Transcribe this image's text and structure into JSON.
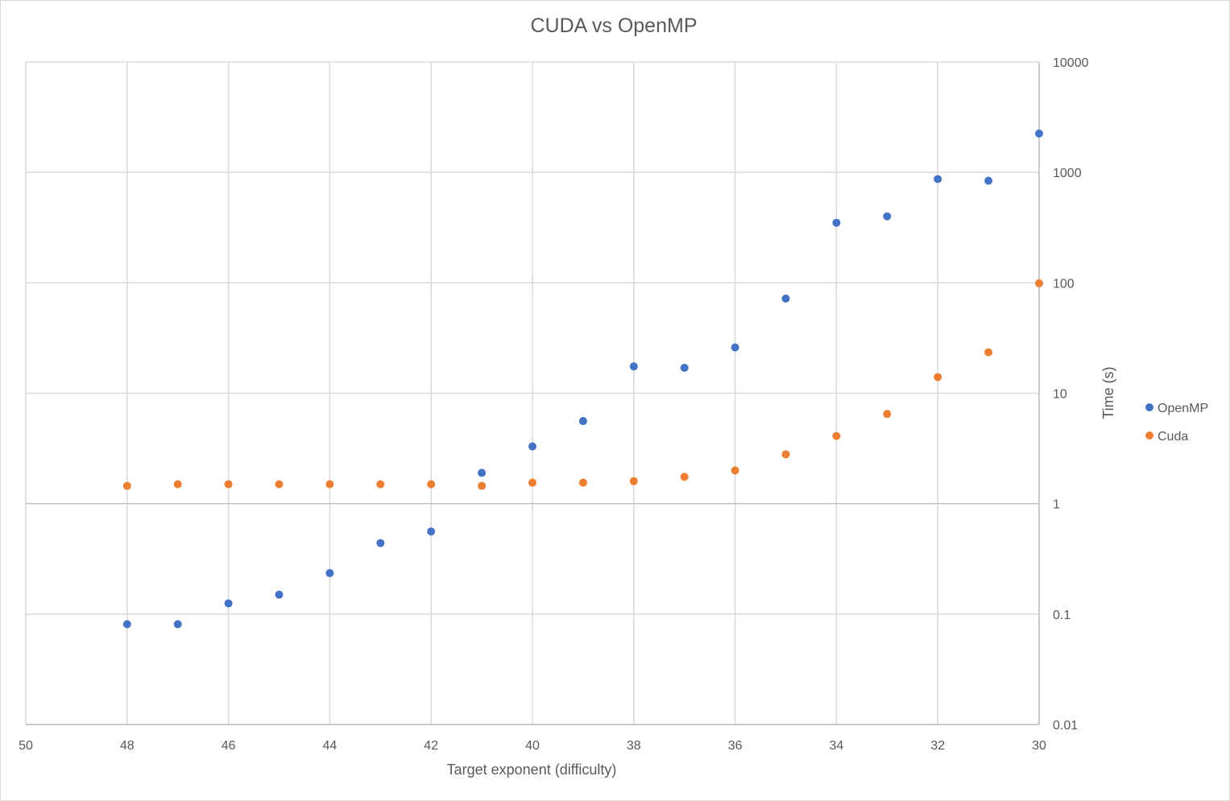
{
  "chart_data": {
    "type": "scatter",
    "title": "CUDA vs OpenMP",
    "xlabel": "Target exponent (difficulty)",
    "ylabel": "Time (s)",
    "xlim": [
      50,
      30
    ],
    "x_reversed": true,
    "ylim": [
      0.01,
      10000
    ],
    "y_scale": "log",
    "grid": true,
    "legend_position": "right",
    "x_ticks": [
      "50",
      "48",
      "46",
      "44",
      "42",
      "40",
      "38",
      "36",
      "34",
      "32",
      "30"
    ],
    "y_ticks": [
      "0.01",
      "0.1",
      "1",
      "10",
      "100",
      "1000",
      "10000"
    ],
    "series": [
      {
        "name": "OpenMP",
        "color": "#4472C4",
        "points": [
          {
            "x": 48,
            "y": 0.081
          },
          {
            "x": 47,
            "y": 0.081
          },
          {
            "x": 46,
            "y": 0.125
          },
          {
            "x": 45,
            "y": 0.15
          },
          {
            "x": 44,
            "y": 0.235
          },
          {
            "x": 43,
            "y": 0.44
          },
          {
            "x": 42,
            "y": 0.56
          },
          {
            "x": 41,
            "y": 1.9
          },
          {
            "x": 40,
            "y": 3.3
          },
          {
            "x": 39,
            "y": 5.6
          },
          {
            "x": 38,
            "y": 17.5
          },
          {
            "x": 37,
            "y": 17
          },
          {
            "x": 36,
            "y": 26
          },
          {
            "x": 35,
            "y": 72
          },
          {
            "x": 34,
            "y": 350
          },
          {
            "x": 33,
            "y": 400
          },
          {
            "x": 32,
            "y": 870
          },
          {
            "x": 31,
            "y": 840
          },
          {
            "x": 30,
            "y": 2250
          }
        ]
      },
      {
        "name": "Cuda",
        "color": "#ED7D31",
        "points": [
          {
            "x": 48,
            "y": 1.45
          },
          {
            "x": 47,
            "y": 1.5
          },
          {
            "x": 46,
            "y": 1.5
          },
          {
            "x": 45,
            "y": 1.5
          },
          {
            "x": 44,
            "y": 1.5
          },
          {
            "x": 43,
            "y": 1.5
          },
          {
            "x": 42,
            "y": 1.5
          },
          {
            "x": 41,
            "y": 1.45
          },
          {
            "x": 40,
            "y": 1.55
          },
          {
            "x": 39,
            "y": 1.55
          },
          {
            "x": 38,
            "y": 1.6
          },
          {
            "x": 37,
            "y": 1.75
          },
          {
            "x": 36,
            "y": 2.0
          },
          {
            "x": 35,
            "y": 2.8
          },
          {
            "x": 34,
            "y": 4.1
          },
          {
            "x": 33,
            "y": 6.5
          },
          {
            "x": 32,
            "y": 14
          },
          {
            "x": 31,
            "y": 23.5
          },
          {
            "x": 30,
            "y": 99
          }
        ]
      }
    ]
  }
}
